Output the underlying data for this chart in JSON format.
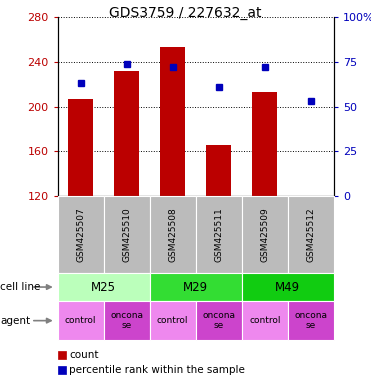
{
  "title": "GDS3759 / 227632_at",
  "samples": [
    "GSM425507",
    "GSM425510",
    "GSM425508",
    "GSM425511",
    "GSM425509",
    "GSM425512"
  ],
  "counts": [
    207,
    232,
    253,
    166,
    213,
    113
  ],
  "percentile_ranks": [
    63,
    74,
    72,
    61,
    72,
    53
  ],
  "ylim_left": [
    120,
    280
  ],
  "ylim_right": [
    0,
    100
  ],
  "yticks_left": [
    120,
    160,
    200,
    240,
    280
  ],
  "yticks_right": [
    0,
    25,
    50,
    75,
    100
  ],
  "yticklabels_right": [
    "0",
    "25",
    "50",
    "75",
    "100%"
  ],
  "bar_color": "#bb0000",
  "marker_color": "#0000bb",
  "cell_lines": [
    {
      "label": "M25",
      "span": [
        0,
        2
      ],
      "color": "#bbffbb"
    },
    {
      "label": "M29",
      "span": [
        2,
        4
      ],
      "color": "#33dd33"
    },
    {
      "label": "M49",
      "span": [
        4,
        6
      ],
      "color": "#11cc11"
    }
  ],
  "agents": [
    "control",
    "onconase",
    "control",
    "onconase",
    "control",
    "onconase"
  ],
  "agent_color_control": "#ee88ee",
  "agent_color_onconase": "#cc44cc",
  "sample_box_color": "#bbbbbb",
  "legend_count_color": "#bb0000",
  "legend_pct_color": "#0000bb",
  "legend_count_label": "count",
  "legend_pct_label": "percentile rank within the sample",
  "cell_line_label": "cell line",
  "agent_label": "agent",
  "bar_width": 0.55,
  "figsize": [
    3.71,
    3.84
  ],
  "dpi": 100
}
